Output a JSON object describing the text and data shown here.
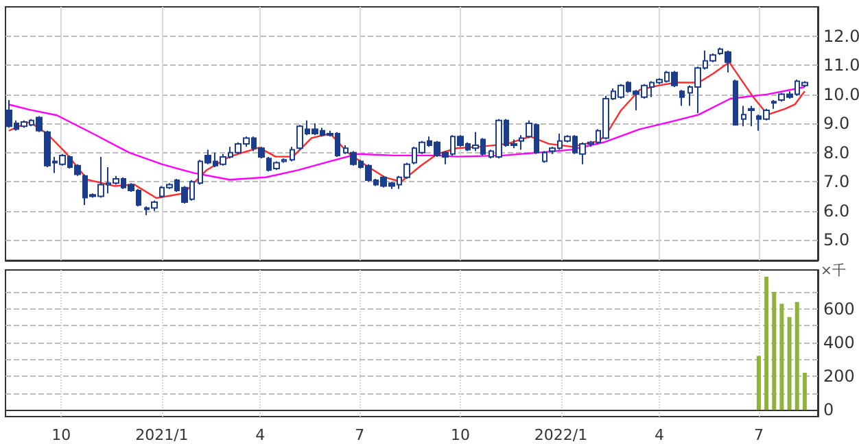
{
  "chart_data": [
    {
      "type": "candlestick",
      "color": "#1c3d8c",
      "grid": true,
      "tick_labels": "y",
      "xlim": [
        "2020-08-11",
        "2022-08-24"
      ],
      "xticks": [
        {
          "value": "2020-10-01",
          "label": null
        },
        {
          "value": "2021-01-01",
          "label": null
        },
        {
          "value": "2021-04-01",
          "label": null
        },
        {
          "value": "2021-07-01",
          "label": null
        },
        {
          "value": "2021-10-01",
          "label": null
        },
        {
          "value": "2022-01-01",
          "label": null
        },
        {
          "value": "2022-04-01",
          "label": null
        },
        {
          "value": "2022-07-01",
          "label": null
        }
      ],
      "ylim": [
        4.3,
        13.0
      ],
      "yticks": [
        {
          "value": 5,
          "label": "5.0"
        },
        {
          "value": 6,
          "label": "6.0"
        },
        {
          "value": 7,
          "label": "7.0"
        },
        {
          "value": 8,
          "label": "8.0"
        },
        {
          "value": 9,
          "label": "9.0"
        },
        {
          "value": 10,
          "label": "10.0"
        },
        {
          "value": 11,
          "label": "11.0"
        },
        {
          "value": 12,
          "label": "12.0"
        }
      ],
      "x": [
        "2020-08-14",
        "2020-08-21",
        "2020-08-28",
        "2020-09-04",
        "2020-09-11",
        "2020-09-18",
        "2020-09-25",
        "2020-10-02",
        "2020-10-09",
        "2020-10-16",
        "2020-10-23",
        "2020-10-30",
        "2020-11-06",
        "2020-11-13",
        "2020-11-20",
        "2020-11-27",
        "2020-12-04",
        "2020-12-11",
        "2020-12-18",
        "2020-12-25",
        "2021-01-01",
        "2021-01-08",
        "2021-01-15",
        "2021-01-22",
        "2021-01-29",
        "2021-02-05",
        "2021-02-12",
        "2021-02-19",
        "2021-02-26",
        "2021-03-05",
        "2021-03-12",
        "2021-03-19",
        "2021-03-26",
        "2021-04-02",
        "2021-04-09",
        "2021-04-16",
        "2021-04-23",
        "2021-04-30",
        "2021-05-07",
        "2021-05-14",
        "2021-05-21",
        "2021-05-28",
        "2021-06-04",
        "2021-06-11",
        "2021-06-18",
        "2021-06-25",
        "2021-07-02",
        "2021-07-09",
        "2021-07-16",
        "2021-07-23",
        "2021-07-30",
        "2021-08-06",
        "2021-08-13",
        "2021-08-20",
        "2021-08-27",
        "2021-09-03",
        "2021-09-10",
        "2021-09-17",
        "2021-09-24",
        "2021-10-01",
        "2021-10-08",
        "2021-10-15",
        "2021-10-22",
        "2021-10-29",
        "2021-11-05",
        "2021-11-12",
        "2021-11-19",
        "2021-11-26",
        "2021-12-03",
        "2021-12-10",
        "2021-12-17",
        "2021-12-24",
        "2021-12-31",
        "2022-01-07",
        "2022-01-14",
        "2022-01-21",
        "2022-01-28",
        "2022-02-04",
        "2022-02-11",
        "2022-02-18",
        "2022-02-25",
        "2022-03-04",
        "2022-03-11",
        "2022-03-18",
        "2022-03-25",
        "2022-04-01",
        "2022-04-08",
        "2022-04-15",
        "2022-04-22",
        "2022-04-29",
        "2022-05-06",
        "2022-05-13",
        "2022-05-20",
        "2022-05-27",
        "2022-06-03",
        "2022-06-10",
        "2022-06-17",
        "2022-06-24",
        "2022-07-01",
        "2022-07-08",
        "2022-07-15",
        "2022-07-22",
        "2022-07-29",
        "2022-08-05",
        "2022-08-12"
      ],
      "ohlc": [
        [
          9.45,
          9.8,
          8.85,
          8.9
        ],
        [
          9.0,
          9.1,
          8.75,
          8.8
        ],
        [
          8.9,
          9.1,
          8.85,
          9.05
        ],
        [
          8.95,
          9.15,
          8.9,
          9.1
        ],
        [
          9.2,
          9.25,
          8.7,
          8.75
        ],
        [
          8.7,
          8.75,
          7.5,
          7.55
        ],
        [
          7.7,
          7.85,
          7.3,
          7.65
        ],
        [
          7.6,
          7.95,
          7.55,
          7.9
        ],
        [
          7.85,
          7.9,
          7.45,
          7.5
        ],
        [
          7.55,
          7.6,
          7.2,
          7.25
        ],
        [
          7.2,
          7.25,
          6.2,
          6.45
        ],
        [
          6.55,
          6.6,
          6.45,
          6.5
        ],
        [
          6.5,
          7.85,
          6.45,
          6.9
        ],
        [
          6.9,
          7.5,
          6.6,
          6.95
        ],
        [
          6.95,
          7.2,
          6.9,
          7.1
        ],
        [
          7.1,
          7.15,
          6.75,
          6.8
        ],
        [
          6.9,
          6.95,
          6.65,
          6.7
        ],
        [
          6.7,
          6.75,
          6.15,
          6.2
        ],
        [
          6.1,
          6.15,
          5.85,
          6.05
        ],
        [
          6.1,
          6.35,
          6.0,
          6.3
        ],
        [
          6.5,
          6.85,
          6.45,
          6.8
        ],
        [
          6.8,
          6.95,
          6.75,
          6.9
        ],
        [
          7.05,
          7.1,
          6.65,
          6.7
        ],
        [
          6.8,
          6.85,
          6.25,
          6.3
        ],
        [
          6.4,
          7.05,
          6.35,
          7.0
        ],
        [
          6.95,
          7.75,
          6.9,
          7.7
        ],
        [
          7.9,
          8.1,
          7.6,
          7.65
        ],
        [
          7.7,
          8.0,
          7.5,
          7.55
        ],
        [
          7.6,
          7.95,
          7.55,
          7.85
        ],
        [
          7.85,
          8.2,
          7.8,
          8.0
        ],
        [
          8.0,
          8.35,
          7.95,
          8.3
        ],
        [
          8.3,
          8.55,
          8.2,
          8.5
        ],
        [
          8.5,
          8.55,
          8.05,
          8.15
        ],
        [
          8.15,
          8.2,
          7.8,
          7.85
        ],
        [
          7.8,
          7.85,
          7.35,
          7.4
        ],
        [
          7.45,
          7.7,
          7.4,
          7.65
        ],
        [
          7.7,
          7.8,
          7.65,
          7.75
        ],
        [
          7.75,
          8.2,
          7.7,
          8.1
        ],
        [
          8.15,
          8.95,
          8.1,
          8.9
        ],
        [
          8.8,
          9.1,
          8.6,
          8.65
        ],
        [
          8.8,
          9.0,
          8.6,
          8.65
        ],
        [
          8.75,
          8.85,
          8.55,
          8.6
        ],
        [
          8.65,
          8.75,
          8.55,
          8.6
        ],
        [
          8.65,
          8.7,
          7.85,
          7.9
        ],
        [
          8.0,
          8.25,
          7.95,
          8.15
        ],
        [
          8.0,
          8.05,
          7.55,
          7.6
        ],
        [
          7.7,
          7.75,
          7.45,
          7.5
        ],
        [
          7.55,
          7.6,
          7.0,
          7.05
        ],
        [
          7.05,
          7.1,
          6.85,
          6.9
        ],
        [
          7.15,
          7.2,
          6.8,
          6.85
        ],
        [
          6.95,
          7.0,
          6.75,
          6.85
        ],
        [
          6.9,
          7.2,
          6.75,
          7.15
        ],
        [
          7.15,
          7.65,
          7.1,
          7.6
        ],
        [
          7.65,
          8.2,
          7.6,
          8.15
        ],
        [
          8.0,
          8.4,
          7.95,
          8.35
        ],
        [
          8.4,
          8.55,
          8.2,
          8.25
        ],
        [
          8.35,
          8.4,
          7.85,
          7.9
        ],
        [
          8.0,
          8.05,
          7.6,
          7.85
        ],
        [
          7.95,
          8.6,
          7.9,
          8.55
        ],
        [
          8.55,
          8.6,
          8.2,
          8.25
        ],
        [
          8.3,
          8.35,
          8.05,
          8.1
        ],
        [
          8.15,
          8.7,
          8.05,
          8.25
        ],
        [
          8.45,
          8.5,
          7.9,
          7.95
        ],
        [
          7.85,
          8.1,
          7.8,
          8.05
        ],
        [
          7.85,
          9.15,
          7.8,
          9.1
        ],
        [
          9.1,
          9.15,
          8.2,
          8.25
        ],
        [
          8.25,
          8.45,
          8.15,
          8.3
        ],
        [
          8.4,
          8.6,
          8.1,
          8.5
        ],
        [
          8.55,
          9.1,
          8.5,
          9.0
        ],
        [
          8.95,
          9.0,
          7.95,
          8.0
        ],
        [
          7.7,
          8.05,
          7.65,
          8.0
        ],
        [
          8.05,
          8.2,
          7.95,
          8.15
        ],
        [
          8.15,
          8.65,
          8.1,
          8.4
        ],
        [
          8.4,
          8.6,
          8.35,
          8.55
        ],
        [
          8.55,
          8.6,
          7.95,
          8.0
        ],
        [
          7.95,
          8.35,
          7.6,
          8.3
        ],
        [
          8.3,
          8.4,
          8.2,
          8.35
        ],
        [
          8.35,
          8.8,
          8.3,
          8.75
        ],
        [
          8.5,
          9.95,
          8.45,
          9.85
        ],
        [
          9.85,
          10.2,
          9.8,
          10.1
        ],
        [
          9.9,
          10.35,
          9.85,
          10.3
        ],
        [
          10.4,
          10.45,
          10.05,
          10.1
        ],
        [
          10.1,
          10.15,
          9.45,
          10.0
        ],
        [
          9.9,
          10.35,
          9.85,
          10.3
        ],
        [
          10.25,
          10.45,
          9.9,
          10.4
        ],
        [
          10.4,
          10.55,
          10.35,
          10.5
        ],
        [
          10.45,
          10.8,
          10.4,
          10.75
        ],
        [
          10.75,
          10.8,
          10.25,
          10.3
        ],
        [
          10.1,
          10.15,
          9.6,
          9.9
        ],
        [
          10.05,
          10.3,
          9.6,
          10.25
        ],
        [
          10.25,
          10.95,
          9.35,
          10.9
        ],
        [
          10.9,
          11.5,
          10.85,
          11.15
        ],
        [
          11.15,
          11.4,
          11.1,
          11.35
        ],
        [
          11.4,
          11.6,
          11.35,
          11.55
        ],
        [
          11.45,
          11.5,
          10.75,
          11.1
        ],
        [
          10.45,
          10.5,
          8.95,
          8.95
        ],
        [
          9.15,
          9.6,
          8.9,
          9.3
        ],
        [
          9.5,
          9.6,
          8.9,
          9.45
        ],
        [
          9.25,
          9.3,
          8.75,
          9.15
        ],
        [
          9.15,
          9.5,
          9.1,
          9.45
        ],
        [
          9.7,
          9.8,
          9.5,
          9.75
        ],
        [
          9.8,
          10.05,
          9.75,
          10.0
        ],
        [
          10.0,
          10.1,
          9.85,
          9.9
        ],
        [
          10.0,
          10.5,
          9.95,
          10.45
        ],
        [
          10.3,
          10.45,
          10.25,
          10.4
        ]
      ],
      "marker": "none",
      "series": [
        {
          "type": "line",
          "color": "#ff2a2a",
          "x": [
            "2020-08-14",
            "2020-09-02",
            "2020-09-18",
            "2020-10-05",
            "2020-10-25",
            "2020-11-19",
            "2020-12-07",
            "2020-12-27",
            "2021-01-21",
            "2021-02-11",
            "2021-03-04",
            "2021-03-31",
            "2021-04-15",
            "2021-05-01",
            "2021-05-18",
            "2021-06-04",
            "2021-06-20",
            "2021-07-07",
            "2021-07-24",
            "2021-08-08",
            "2021-08-26",
            "2021-09-10",
            "2021-09-28",
            "2021-10-19",
            "2021-11-13",
            "2021-12-04",
            "2021-12-21",
            "2022-01-11",
            "2022-02-05",
            "2022-02-12",
            "2022-02-25",
            "2022-03-14",
            "2022-03-31",
            "2022-04-16",
            "2022-05-07",
            "2022-05-20",
            "2022-06-04",
            "2022-06-26",
            "2022-07-09",
            "2022-07-25",
            "2022-08-03",
            "2022-08-12"
          ],
          "values": [
            8.75,
            9.05,
            8.65,
            8.0,
            7.07,
            6.85,
            6.9,
            6.44,
            6.6,
            7.4,
            7.86,
            8.17,
            7.86,
            7.86,
            8.5,
            8.65,
            8.0,
            7.55,
            7.15,
            7.0,
            7.55,
            7.95,
            8.15,
            8.2,
            8.3,
            8.55,
            8.3,
            8.2,
            8.4,
            8.65,
            9.45,
            10.15,
            10.3,
            10.4,
            10.4,
            10.7,
            11.1,
            9.9,
            9.3,
            9.5,
            9.65,
            10.1
          ]
        },
        {
          "type": "line",
          "color": "#ff00ff",
          "x": [
            "2020-08-14",
            "2020-09-02",
            "2020-09-27",
            "2020-10-30",
            "2020-12-02",
            "2021-01-01",
            "2021-01-30",
            "2021-03-04",
            "2021-04-06",
            "2021-05-06",
            "2021-06-04",
            "2021-06-29",
            "2021-08-01",
            "2021-09-10",
            "2021-09-28",
            "2021-11-09",
            "2021-12-12",
            "2022-01-11",
            "2022-02-09",
            "2022-03-14",
            "2022-04-16",
            "2022-05-07",
            "2022-06-05",
            "2022-07-09",
            "2022-08-12"
          ],
          "values": [
            9.65,
            9.47,
            9.28,
            8.65,
            8.0,
            7.6,
            7.3,
            7.07,
            7.15,
            7.4,
            7.7,
            7.95,
            7.9,
            7.9,
            7.86,
            7.9,
            8.0,
            8.1,
            8.35,
            8.8,
            9.1,
            9.3,
            9.85,
            10.0,
            10.25
          ]
        }
      ]
    },
    {
      "type": "bar",
      "color": "#8db33a",
      "grid": true,
      "ylabel": "×千",
      "xlim": [
        "2020-08-11",
        "2022-08-24"
      ],
      "xticks": [
        {
          "value": "2020-10-01",
          "label": "10"
        },
        {
          "value": "2021-01-01",
          "label": "2021/1"
        },
        {
          "value": "2021-04-01",
          "label": "4"
        },
        {
          "value": "2021-07-01",
          "label": "7"
        },
        {
          "value": "2021-10-01",
          "label": "10"
        },
        {
          "value": "2022-01-01",
          "label": "2022/1"
        },
        {
          "value": "2022-04-01",
          "label": "4"
        },
        {
          "value": "2022-07-01",
          "label": "7"
        }
      ],
      "ylim": [
        -40,
        830
      ],
      "yticks": [
        0,
        {
          "value": 100,
          "label": null
        },
        200,
        {
          "value": 300,
          "label": null
        },
        400,
        {
          "value": 500,
          "label": null
        },
        600,
        {
          "value": 700,
          "label": null
        }
      ],
      "x": [
        "2022-07-01",
        "2022-07-08",
        "2022-07-15",
        "2022-07-22",
        "2022-07-29",
        "2022-08-05",
        "2022-08-12"
      ],
      "values": [
        320,
        790,
        700,
        630,
        550,
        640,
        220
      ]
    }
  ]
}
